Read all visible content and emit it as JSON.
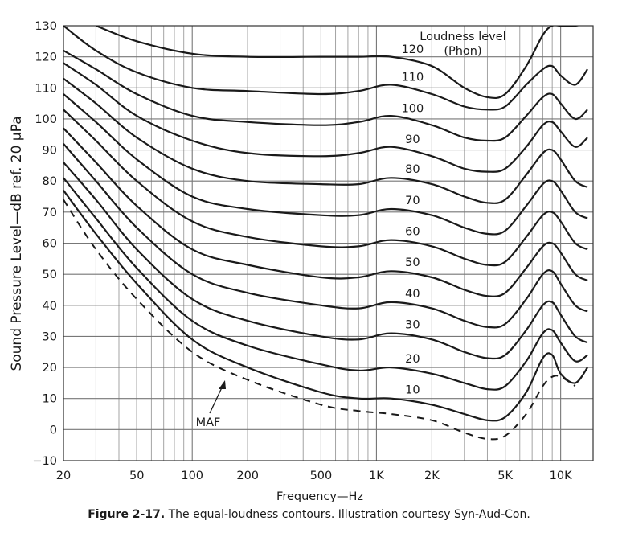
{
  "chart_data": {
    "type": "line",
    "ylabel": "Sound Pressure Level—dB ref. 20 μPa",
    "xlabel": "Frequency—Hz",
    "x_scale": "log",
    "xlim": [
      20,
      15000
    ],
    "ylim": [
      -10,
      130
    ],
    "grid": true,
    "x_ticks": [
      {
        "value": 20,
        "label": "20"
      },
      {
        "value": 50,
        "label": "50"
      },
      {
        "value": 100,
        "label": "100"
      },
      {
        "value": 200,
        "label": "200"
      },
      {
        "value": 500,
        "label": "500"
      },
      {
        "value": 1000,
        "label": "1K"
      },
      {
        "value": 2000,
        "label": "2K"
      },
      {
        "value": 5000,
        "label": "5K"
      },
      {
        "value": 10000,
        "label": "10K"
      }
    ],
    "y_ticks": [
      -10,
      0,
      10,
      20,
      30,
      40,
      50,
      60,
      70,
      80,
      90,
      100,
      110,
      120,
      130
    ],
    "legend_title": "Loudness level",
    "legend_subtitle": "(Phon)",
    "series": [
      {
        "name": "10",
        "x": [
          20,
          30,
          50,
          100,
          200,
          500,
          800,
          1200,
          2000,
          3000,
          4000,
          5000,
          6500,
          8000,
          9000,
          10000,
          12000,
          14000
        ],
        "y": [
          77,
          63,
          47,
          29,
          20,
          12,
          10,
          10,
          8,
          5,
          3,
          4,
          12,
          23,
          24,
          18,
          15,
          20
        ]
      },
      {
        "name": "20",
        "x": [
          20,
          30,
          50,
          100,
          200,
          500,
          800,
          1200,
          2000,
          3000,
          4000,
          5000,
          6500,
          8000,
          9000,
          10000,
          12000,
          14000
        ],
        "y": [
          81,
          68,
          52,
          35,
          27,
          21,
          19,
          20,
          18,
          15,
          13,
          14,
          22,
          31,
          32,
          28,
          22,
          24
        ]
      },
      {
        "name": "30",
        "x": [
          20,
          30,
          50,
          100,
          200,
          500,
          800,
          1200,
          2000,
          3000,
          4000,
          5000,
          6500,
          8000,
          9000,
          10000,
          12000,
          14000
        ],
        "y": [
          86,
          74,
          58,
          42,
          35,
          30,
          29,
          31,
          29,
          25,
          23,
          24,
          32,
          40,
          41,
          37,
          30,
          28
        ]
      },
      {
        "name": "40",
        "x": [
          20,
          30,
          50,
          100,
          200,
          500,
          800,
          1200,
          2000,
          3000,
          4000,
          5000,
          6500,
          8000,
          9000,
          10000,
          12000,
          14000
        ],
        "y": [
          92,
          80,
          65,
          50,
          44,
          40,
          39,
          41,
          39,
          35,
          33,
          34,
          42,
          50,
          51,
          47,
          40,
          38
        ]
      },
      {
        "name": "50",
        "x": [
          20,
          30,
          50,
          100,
          200,
          500,
          800,
          1200,
          2000,
          3000,
          4000,
          5000,
          6500,
          8000,
          9000,
          10000,
          12000,
          14000
        ],
        "y": [
          97,
          86,
          72,
          58,
          53,
          49,
          49,
          51,
          49,
          45,
          43,
          44,
          52,
          59,
          60,
          57,
          50,
          48
        ]
      },
      {
        "name": "60",
        "x": [
          20,
          30,
          50,
          100,
          200,
          500,
          800,
          1200,
          2000,
          3000,
          4000,
          5000,
          6500,
          8000,
          9000,
          10000,
          12000,
          14000
        ],
        "y": [
          103,
          93,
          80,
          67,
          62,
          59,
          59,
          61,
          59,
          55,
          53,
          54,
          62,
          69,
          70,
          67,
          60,
          58
        ]
      },
      {
        "name": "70",
        "x": [
          20,
          30,
          50,
          100,
          200,
          500,
          800,
          1200,
          2000,
          3000,
          4000,
          5000,
          6500,
          8000,
          9000,
          10000,
          12000,
          14000
        ],
        "y": [
          108,
          99,
          87,
          75,
          71,
          69,
          69,
          71,
          69,
          65,
          63,
          64,
          72,
          79,
          80,
          77,
          70,
          68
        ]
      },
      {
        "name": "80",
        "x": [
          20,
          30,
          50,
          100,
          200,
          500,
          800,
          1200,
          2000,
          3000,
          4000,
          5000,
          6500,
          8000,
          9000,
          10000,
          12000,
          14000
        ],
        "y": [
          113,
          105,
          94,
          84,
          80,
          79,
          79,
          81,
          79,
          75,
          73,
          74,
          82,
          89,
          90,
          87,
          80,
          78
        ]
      },
      {
        "name": "90",
        "x": [
          20,
          30,
          50,
          100,
          200,
          500,
          800,
          1200,
          2000,
          3000,
          4000,
          5000,
          6500,
          8000,
          9000,
          10000,
          12000,
          14000
        ],
        "y": [
          118,
          111,
          101,
          93,
          89,
          88,
          89,
          91,
          88,
          84,
          83,
          84,
          91,
          98,
          99,
          96,
          91,
          94
        ]
      },
      {
        "name": "100",
        "x": [
          20,
          30,
          50,
          100,
          200,
          500,
          800,
          1200,
          2000,
          3000,
          4000,
          5000,
          6500,
          8000,
          9000,
          10000,
          12000,
          14000
        ],
        "y": [
          122,
          116,
          108,
          101,
          99,
          98,
          99,
          101,
          98,
          94,
          93,
          94,
          101,
          107,
          108,
          105,
          100,
          103
        ]
      },
      {
        "name": "110",
        "x": [
          20,
          30,
          50,
          100,
          200,
          500,
          800,
          1200,
          2000,
          3000,
          4000,
          5000,
          6500,
          8000,
          9000,
          10000,
          12000,
          14000
        ],
        "y": [
          130,
          122,
          115,
          110,
          109,
          108,
          109,
          111,
          108,
          104,
          103,
          104,
          111,
          116,
          117,
          114,
          111,
          116
        ]
      },
      {
        "name": "120",
        "x": [
          30,
          50,
          100,
          200,
          500,
          800,
          1200,
          2000,
          3000,
          4000,
          5000,
          6500,
          8000,
          9000,
          10000,
          12000,
          14000
        ],
        "y": [
          130,
          125,
          121,
          120,
          120,
          120,
          120,
          117,
          110,
          107,
          108,
          117,
          127,
          130,
          130,
          130,
          131
        ]
      }
    ],
    "maf": {
      "name": "MAF",
      "x": [
        20,
        30,
        50,
        100,
        200,
        500,
        800,
        1200,
        2000,
        3000,
        4000,
        5000,
        6500,
        8000,
        9000,
        10000,
        12000
      ],
      "y": [
        74,
        58,
        42,
        25,
        16,
        8,
        6,
        5,
        3,
        -1,
        -3,
        -2,
        5,
        14,
        17,
        17,
        14
      ]
    },
    "annotations": [
      "MAF"
    ]
  },
  "caption": {
    "bold": "Figure 2-17.",
    "text": " The equal-loudness contours. Illustration courtesy Syn-Aud-Con."
  }
}
